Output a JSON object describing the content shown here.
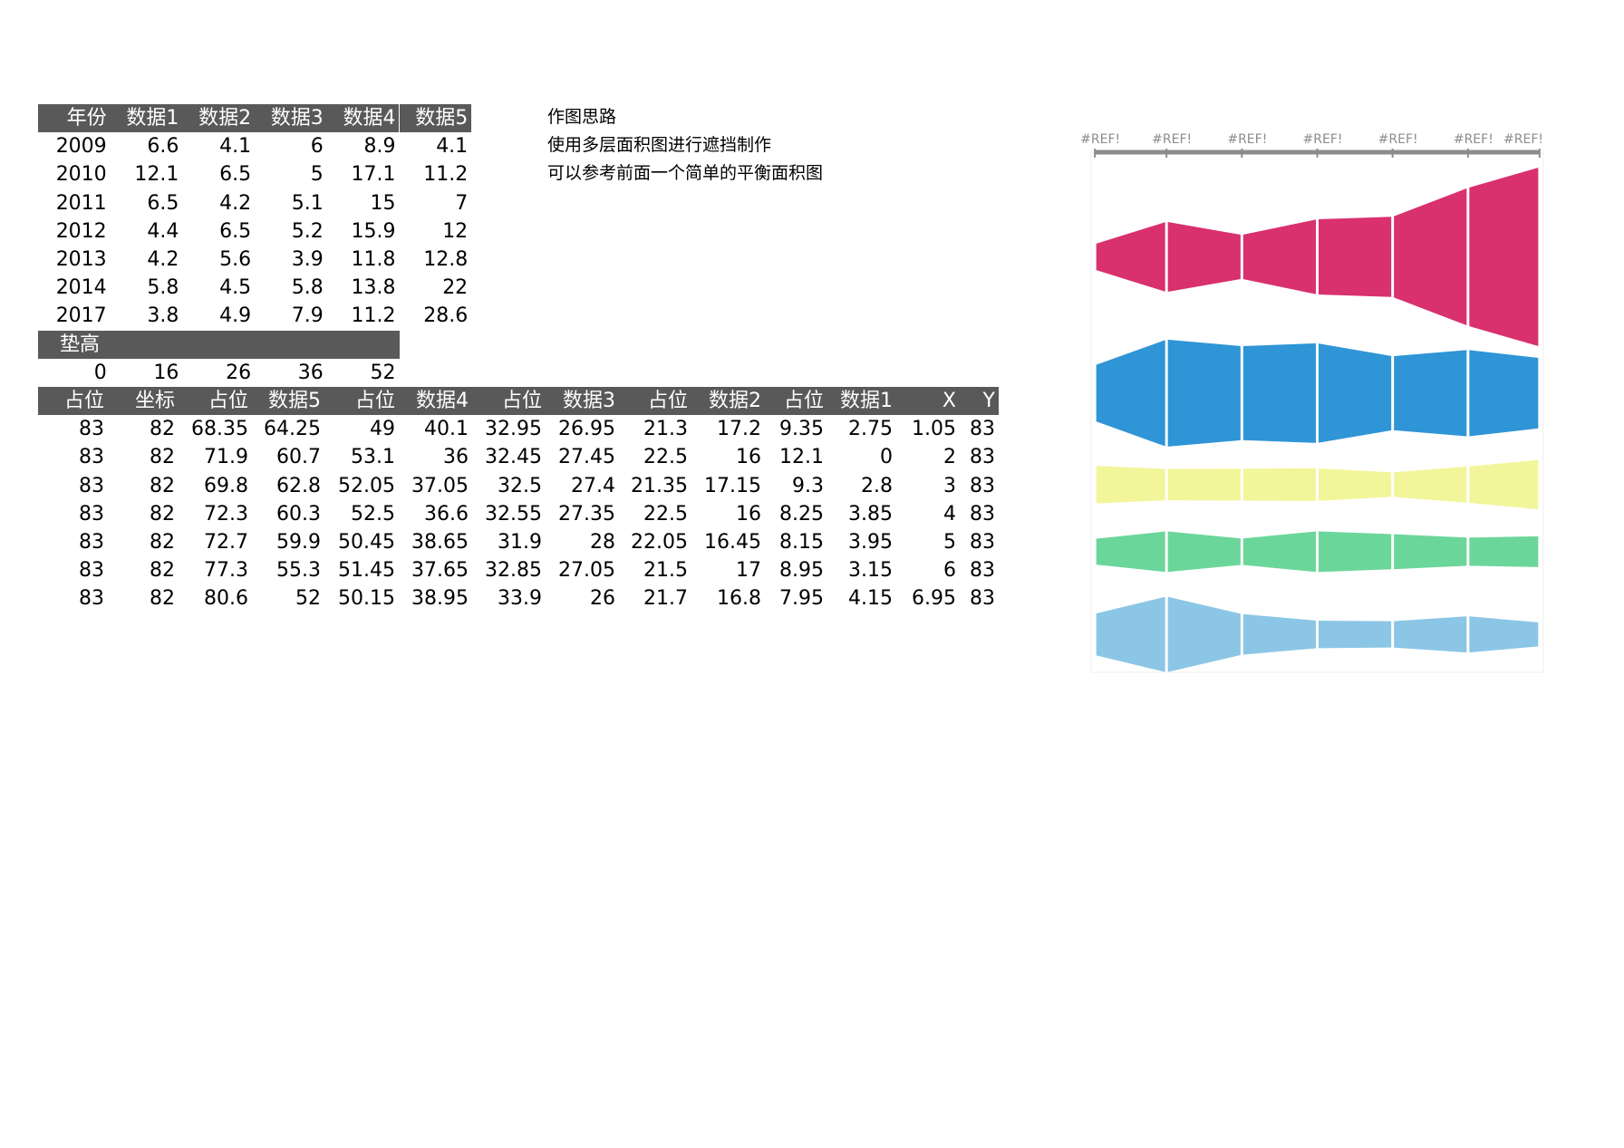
{
  "table1": {
    "header": [
      "年份",
      "数据1",
      "数据2",
      "数据3",
      "数据4",
      "数据5"
    ],
    "rows": [
      [
        2009,
        6.6,
        4.1,
        6,
        8.9,
        4.1
      ],
      [
        2010,
        12.1,
        6.5,
        5,
        17.1,
        11.2
      ],
      [
        2011,
        6.5,
        4.2,
        5.1,
        15,
        7
      ],
      [
        2012,
        4.4,
        6.5,
        5.2,
        15.9,
        12
      ],
      [
        2013,
        4.2,
        5.6,
        3.9,
        11.8,
        12.8
      ],
      [
        2014,
        5.8,
        4.5,
        5.8,
        13.8,
        22
      ],
      [
        2017,
        3.8,
        4.9,
        7.9,
        11.2,
        28.6
      ]
    ]
  },
  "padding": {
    "label": "垫高",
    "values": [
      0,
      16,
      26,
      36,
      52
    ]
  },
  "table2": {
    "header": [
      "占位",
      "坐标",
      "占位",
      "数据5",
      "占位",
      "数据4",
      "占位",
      "数据3",
      "占位",
      "数据2",
      "占位",
      "数据1",
      "X",
      "Y"
    ],
    "rows": [
      [
        83,
        82,
        68.35,
        64.25,
        49,
        40.1,
        32.95,
        26.95,
        21.3,
        17.2,
        9.35,
        2.75,
        1.05,
        83
      ],
      [
        83,
        82,
        71.9,
        60.7,
        53.1,
        36,
        32.45,
        27.45,
        22.5,
        16,
        12.1,
        0,
        2,
        83
      ],
      [
        83,
        82,
        69.8,
        62.8,
        52.05,
        37.05,
        32.5,
        27.4,
        21.35,
        17.15,
        9.3,
        2.8,
        3,
        83
      ],
      [
        83,
        82,
        72.3,
        60.3,
        52.5,
        36.6,
        32.55,
        27.35,
        22.5,
        16,
        8.25,
        3.85,
        4,
        83
      ],
      [
        83,
        82,
        72.7,
        59.9,
        50.45,
        38.65,
        31.9,
        28,
        22.05,
        16.45,
        8.15,
        3.95,
        5,
        83
      ],
      [
        83,
        82,
        77.3,
        55.3,
        51.45,
        37.65,
        32.85,
        27.05,
        21.5,
        17,
        8.95,
        3.15,
        6,
        83
      ],
      [
        83,
        82,
        80.6,
        52,
        50.15,
        38.95,
        33.9,
        26,
        21.7,
        16.8,
        7.95,
        4.15,
        6.95,
        83
      ]
    ]
  },
  "notes": [
    "作图思路",
    "使用多层面积图进行遮挡制作",
    "可以参考前面一个简单的平衡面积图"
  ],
  "chart": {
    "type": "area",
    "x_labels": [
      "#REF!",
      "#REF!",
      "#REF!",
      "#REF!",
      "#REF!",
      "#REF!",
      "#REF!"
    ],
    "xlim": [
      1,
      7
    ],
    "ylim": [
      0,
      83
    ],
    "colors": [
      "#d9306e",
      "#2f95d6",
      "#f3f59a",
      "#6bd699",
      "#8cc6e6"
    ]
  }
}
